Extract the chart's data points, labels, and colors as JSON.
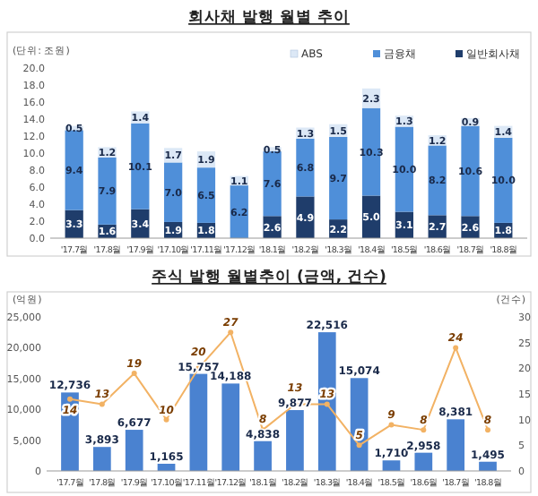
{
  "chart_data": [
    {
      "type": "bar",
      "title": "회사채 발행 월별 추이",
      "ylabel": "(단위: 조원)",
      "stacked": true,
      "legend": "top right",
      "grid": false,
      "categories": [
        "'17.7월",
        "'17.8월",
        "'17.9월",
        "'17.10월",
        "'17.11월",
        "'17.12월",
        "'18.1월",
        "'18.2월",
        "'18.3월",
        "'18.4월",
        "'18.5월",
        "'18.6월",
        "'18.7월",
        "'18.8월"
      ],
      "ylim": [
        0,
        20
      ],
      "yticks": [
        {
          "value": 0,
          "label": "0.0"
        },
        {
          "value": 2,
          "label": "2.0"
        },
        {
          "value": 4,
          "label": "4.0"
        },
        {
          "value": 6,
          "label": "6.0"
        },
        {
          "value": 8,
          "label": "8.0"
        },
        {
          "value": 10,
          "label": "10.0"
        },
        {
          "value": 12,
          "label": "12.0"
        },
        {
          "value": 14,
          "label": "14.0"
        },
        {
          "value": 16,
          "label": "16.0"
        },
        {
          "value": 18,
          "label": "18.0"
        },
        {
          "value": 20,
          "label": "20.0"
        }
      ],
      "series": [
        {
          "name": "일반회사채",
          "color": "#1f3d6b",
          "values": [
            3.3,
            1.6,
            3.4,
            1.9,
            1.8,
            null,
            2.6,
            4.9,
            2.2,
            5.0,
            3.1,
            2.7,
            2.6,
            1.8
          ],
          "value_labels": [
            "3.3",
            "1.6",
            "3.4",
            "1.9",
            "1.8",
            null,
            "2.6",
            "4.9",
            "2.2",
            "5.0",
            "3.1",
            "2.7",
            "2.6",
            "1.8"
          ]
        },
        {
          "name": "금융채",
          "color": "#4f8fd9",
          "values": [
            9.4,
            7.9,
            10.1,
            7.0,
            6.5,
            6.2,
            7.6,
            6.8,
            9.7,
            10.3,
            10.0,
            8.2,
            10.6,
            10.0
          ],
          "value_labels": [
            "9.4",
            "7.9",
            "10.1",
            "7.0",
            "6.5",
            "6.2",
            "7.6",
            "6.8",
            "9.7",
            "10.3",
            "10.0",
            "8.2",
            "10.6",
            "10.0"
          ]
        },
        {
          "name": "ABS",
          "color": "#dce8f6",
          "values": [
            0.5,
            1.2,
            1.4,
            1.7,
            1.9,
            1.1,
            0.5,
            1.3,
            1.5,
            2.3,
            1.3,
            1.2,
            0.9,
            1.4
          ],
          "value_labels": [
            "0.5",
            "1.2",
            "1.4",
            "1.7",
            "1.9",
            "1.1",
            "0.5",
            "1.3",
            "1.5",
            "2.3",
            "1.3",
            "1.2",
            "0.9",
            "1.4"
          ]
        }
      ]
    },
    {
      "type": "bar",
      "title": "주식 발행 월별추이 (금액, 건수)",
      "ylabel": "(억원)",
      "y2label": "(건수)",
      "grid": false,
      "legend": false,
      "categories": [
        "'17.7월",
        "'17.8월",
        "'17.9월",
        "'17.10월",
        "'17.11월",
        "'17.12월",
        "'18.1월",
        "'18.2월",
        "'18.3월",
        "'18.4월",
        "'18.5월",
        "'18.6월",
        "'18.7월",
        "'18.8월"
      ],
      "ylim": [
        0,
        25000
      ],
      "yticks": [
        0,
        {
          "value": 5000,
          "label": "5,000"
        },
        {
          "value": 10000,
          "label": "10,000"
        },
        {
          "value": 15000,
          "label": "15,000"
        },
        {
          "value": 20000,
          "label": "20,000"
        },
        {
          "value": 25000,
          "label": "25,000"
        }
      ],
      "y2lim": [
        0,
        30
      ],
      "y2ticks": [
        0,
        5,
        10,
        15,
        20,
        25,
        30
      ],
      "series": [
        {
          "color": "#4a82d0",
          "values": [
            12736,
            3893,
            6677,
            1165,
            15757,
            14188,
            4838,
            9877,
            22516,
            15074,
            1710,
            2958,
            8381,
            1495
          ],
          "value_labels": [
            "12,736",
            "3,893",
            "6,677",
            "1,165",
            "15,757",
            "14,188",
            "4,838",
            "9,877",
            "22,516",
            "15,074",
            "1,710",
            "2,958",
            "8,381",
            "1,495"
          ]
        },
        {
          "type": "line",
          "axis": "y2",
          "color": "#f2b264",
          "marker": "circle",
          "values": [
            14,
            13,
            19,
            10,
            20,
            27,
            8,
            13,
            13,
            5,
            9,
            8,
            24,
            8
          ],
          "value_labels": [
            "14",
            "13",
            "19",
            "10",
            "20",
            "27",
            "8",
            "13",
            "13",
            "5",
            "9",
            "8",
            "24",
            "8"
          ]
        }
      ]
    }
  ]
}
